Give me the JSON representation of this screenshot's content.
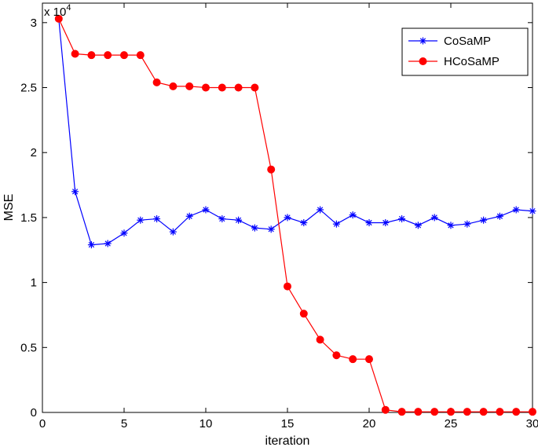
{
  "chart_data": {
    "type": "line",
    "title": "",
    "xlabel": "iteration",
    "ylabel": "MSE",
    "y_multiplier_label": "x 10",
    "y_multiplier_exponent": "4",
    "xlim": [
      0,
      30
    ],
    "ylim": [
      0,
      31500
    ],
    "xticks": [
      0,
      5,
      10,
      15,
      20,
      25,
      30
    ],
    "yticks": [
      0,
      5000,
      10000,
      15000,
      20000,
      25000,
      30000
    ],
    "xtick_labels": [
      "0",
      "5",
      "10",
      "15",
      "20",
      "25",
      "30"
    ],
    "ytick_labels": [
      "0",
      "0.5",
      "1",
      "1.5",
      "2",
      "2.5",
      "3"
    ],
    "grid": false,
    "legend_position": "top-right",
    "x": [
      1,
      2,
      3,
      4,
      5,
      6,
      7,
      8,
      9,
      10,
      11,
      12,
      13,
      14,
      15,
      16,
      17,
      18,
      19,
      20,
      21,
      22,
      23,
      24,
      25,
      26,
      27,
      28,
      29,
      30
    ],
    "series": [
      {
        "name": "CoSaMP",
        "color": "#0000ff",
        "marker": "asterisk",
        "values": [
          30300,
          17000,
          12900,
          13000,
          13800,
          14800,
          14900,
          13900,
          15100,
          15600,
          14900,
          14800,
          14200,
          14100,
          15000,
          14600,
          15600,
          14500,
          15200,
          14600,
          14600,
          14900,
          14400,
          15000,
          14400,
          14500,
          14800,
          15100,
          15600,
          15500
        ]
      },
      {
        "name": "HCoSaMP",
        "color": "#ff0000",
        "marker": "circle",
        "values": [
          30300,
          27600,
          27500,
          27500,
          27500,
          27500,
          25400,
          25100,
          25100,
          25000,
          25000,
          25000,
          25000,
          18700,
          9700,
          7600,
          5600,
          4400,
          4100,
          4100,
          200,
          50,
          50,
          50,
          50,
          50,
          50,
          50,
          50,
          50
        ]
      }
    ]
  }
}
